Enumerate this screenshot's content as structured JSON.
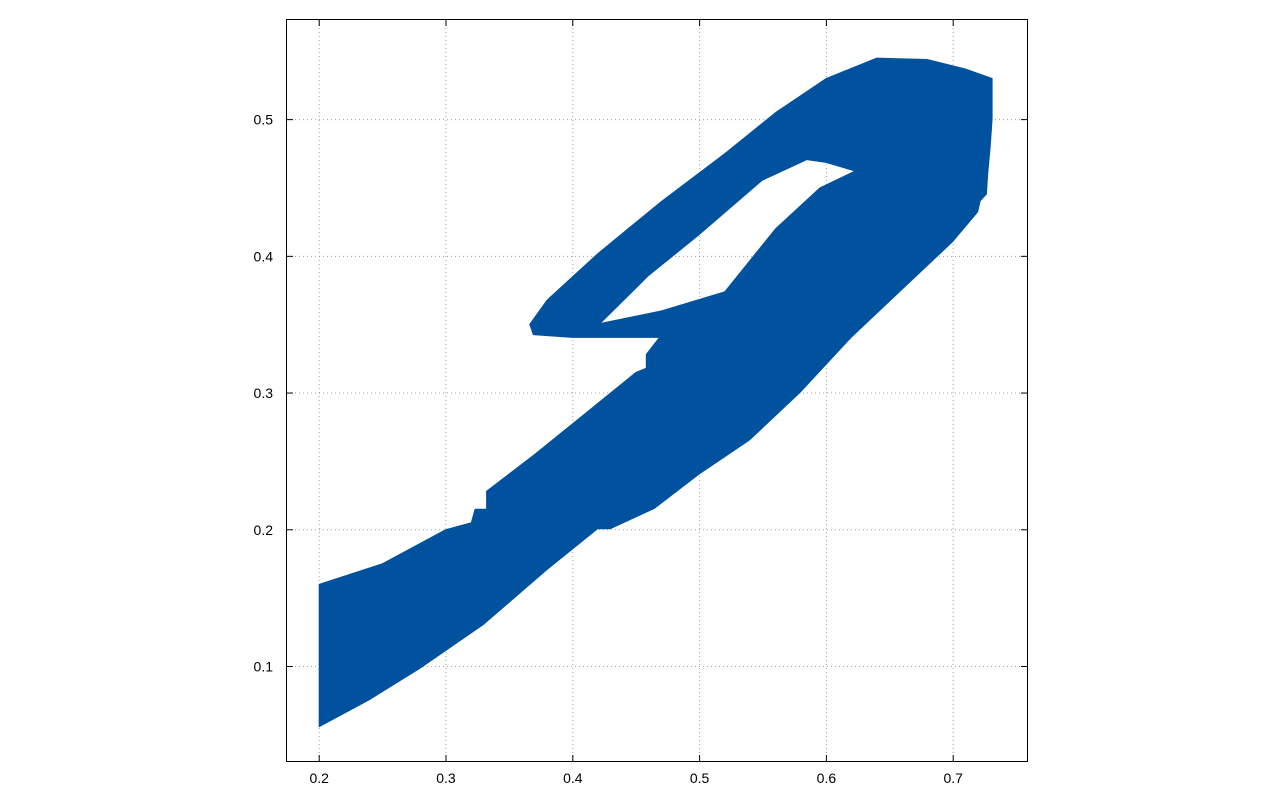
{
  "chart_data": {
    "type": "area",
    "title": "",
    "xlabel": "",
    "ylabel": "",
    "xlim": [
      0.175,
      0.7586
    ],
    "ylim": [
      0.0305,
      0.5725
    ],
    "grid": true,
    "x_ticks": [
      0.2,
      0.3,
      0.4,
      0.5,
      0.6,
      0.7
    ],
    "y_ticks": [
      0.1,
      0.2,
      0.3,
      0.4,
      0.5
    ],
    "x_tick_labels": [
      "0.2",
      "0.3",
      "0.4",
      "0.5",
      "0.6",
      "0.7"
    ],
    "y_tick_labels": [
      "0.1",
      "0.2",
      "0.3",
      "0.4",
      "0.5"
    ],
    "fill_color": "#00529f",
    "series": [
      {
        "region": "outer",
        "points": [
          [
            0.2,
            0.16
          ],
          [
            0.25,
            0.175
          ],
          [
            0.3,
            0.2
          ],
          [
            0.32,
            0.205
          ],
          [
            0.323,
            0.215
          ],
          [
            0.332,
            0.215
          ],
          [
            0.332,
            0.228
          ],
          [
            0.37,
            0.255
          ],
          [
            0.41,
            0.285
          ],
          [
            0.45,
            0.315
          ],
          [
            0.458,
            0.318
          ],
          [
            0.458,
            0.328
          ],
          [
            0.468,
            0.34
          ],
          [
            0.4,
            0.34
          ],
          [
            0.369,
            0.342
          ],
          [
            0.366,
            0.35
          ],
          [
            0.38,
            0.368
          ],
          [
            0.42,
            0.402
          ],
          [
            0.47,
            0.44
          ],
          [
            0.52,
            0.475
          ],
          [
            0.56,
            0.505
          ],
          [
            0.6,
            0.53
          ],
          [
            0.64,
            0.545
          ],
          [
            0.68,
            0.544
          ],
          [
            0.71,
            0.537
          ],
          [
            0.7315,
            0.53
          ],
          [
            0.7315,
            0.5
          ],
          [
            0.73,
            0.48
          ],
          [
            0.728,
            0.46
          ],
          [
            0.727,
            0.445
          ],
          [
            0.722,
            0.44
          ],
          [
            0.72,
            0.432
          ],
          [
            0.7,
            0.41
          ],
          [
            0.66,
            0.375
          ],
          [
            0.62,
            0.34
          ],
          [
            0.58,
            0.3
          ],
          [
            0.54,
            0.265
          ],
          [
            0.5,
            0.24
          ],
          [
            0.465,
            0.215
          ],
          [
            0.43,
            0.2
          ],
          [
            0.42,
            0.2
          ],
          [
            0.38,
            0.17
          ],
          [
            0.33,
            0.13
          ],
          [
            0.28,
            0.098
          ],
          [
            0.24,
            0.075
          ],
          [
            0.2,
            0.055
          ]
        ]
      },
      {
        "region": "hole",
        "points": [
          [
            0.423,
            0.351
          ],
          [
            0.47,
            0.36
          ],
          [
            0.52,
            0.374
          ],
          [
            0.56,
            0.42
          ],
          [
            0.595,
            0.45
          ],
          [
            0.622,
            0.462
          ],
          [
            0.6,
            0.468
          ],
          [
            0.585,
            0.47
          ],
          [
            0.55,
            0.455
          ],
          [
            0.5,
            0.415
          ],
          [
            0.46,
            0.385
          ]
        ]
      }
    ]
  }
}
